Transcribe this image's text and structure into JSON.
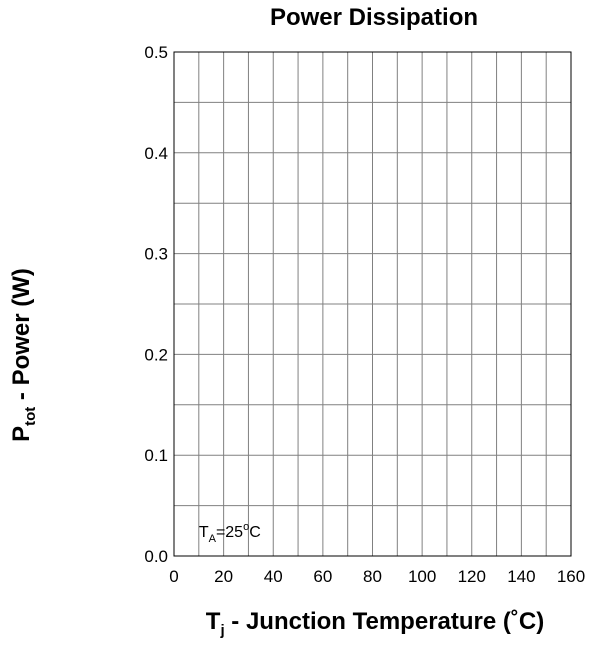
{
  "chart_data": {
    "type": "line",
    "title": "Power Dissipation",
    "ylabel": {
      "main": "P",
      "sub": "tot",
      "rest": " - Power (W)"
    },
    "xlabel": {
      "main": "T",
      "sub": "j",
      "rest": " - Junction Temperature (˚C)"
    },
    "xlim": [
      0,
      160
    ],
    "ylim": [
      0.0,
      0.5
    ],
    "x_ticks": [
      "0",
      "20",
      "40",
      "60",
      "80",
      "100",
      "120",
      "140",
      "160"
    ],
    "y_ticks": [
      "0.0",
      "0.1",
      "0.2",
      "0.3",
      "0.4",
      "0.5"
    ],
    "grid": true,
    "grid_x_minor": 10,
    "grid_y_minor": 0.05,
    "annotation": {
      "main": "T",
      "sub": "A",
      "rest": "=25",
      "deg": "o",
      "unit": "C",
      "x": 10,
      "y": 0.025
    },
    "series": []
  }
}
